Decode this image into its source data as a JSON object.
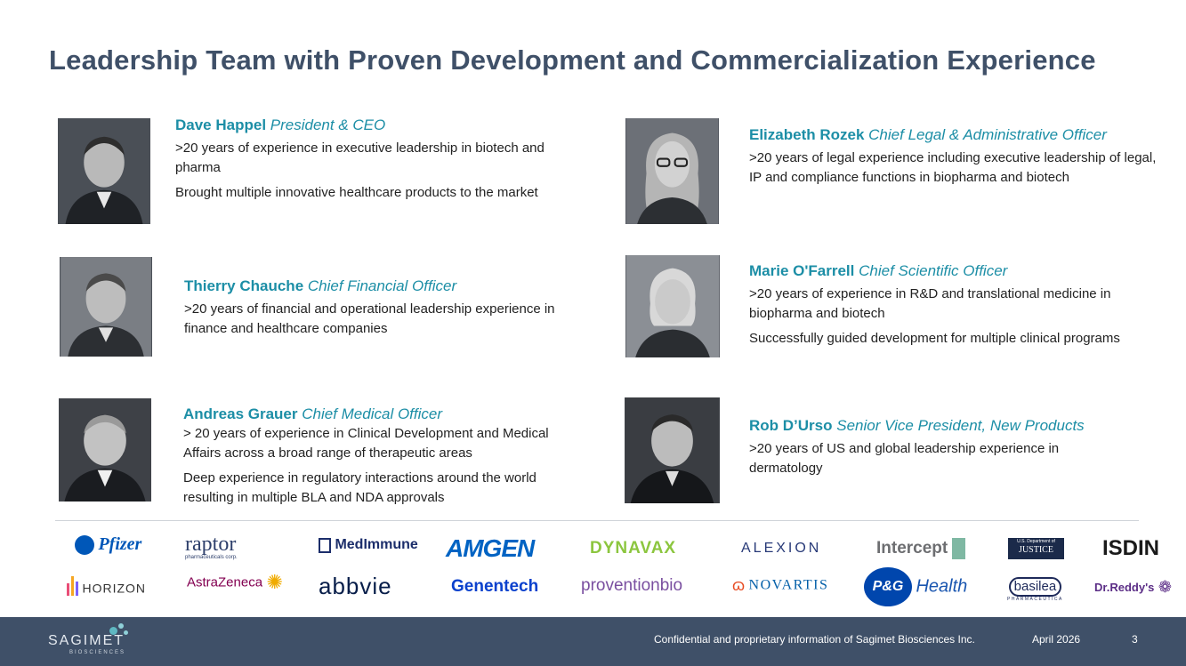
{
  "title": "Leadership Team with Proven Development and Commercialization Experience",
  "people": [
    {
      "name": "Dave Happel",
      "role": "President & CEO",
      "desc": [
        ">20 years of experience in executive leadership in biotech and pharma",
        "Brought multiple innovative healthcare products  to the market"
      ]
    },
    {
      "name": "Thierry Chauche",
      "role": "Chief Financial Officer",
      "desc": [
        ">20 years of financial and operational leadership experience in finance and healthcare companies"
      ]
    },
    {
      "name": "Andreas Grauer",
      "role": "Chief Medical Officer",
      "desc": [
        "> 20 years of experience in Clinical Development and Medical Affairs across a broad range of therapeutic areas",
        "Deep experience in regulatory interactions around the world resulting in multiple BLA and NDA approvals"
      ]
    },
    {
      "name": "Elizabeth Rozek",
      "role": "Chief Legal & Administrative Officer",
      "desc": [
        ">20 years of legal experience including executive leadership of legal, IP and compliance functions in biopharma and biotech"
      ]
    },
    {
      "name": "Marie O'Farrell",
      "role": "Chief Scientific Officer",
      "desc": [
        ">20 years of experience in R&D and translational medicine  in biopharma and biotech",
        "Successfully guided development for multiple clinical programs"
      ]
    },
    {
      "name": "Rob D’Urso",
      "role": "Senior Vice President, New Products",
      "desc": [
        ">20 years of US and global leadership experience in dermatology"
      ]
    }
  ],
  "logos": {
    "pfizer": "Pfizer",
    "raptor": "raptor",
    "raptor_sub": "pharmaceuticals corp.",
    "medimmune": "MedImmune",
    "amgen": "AMGEN",
    "dynavax": "DYNAVAX",
    "alexion": "ALEXION",
    "intercept": "Intercept",
    "doj_small": "U.S. Department of",
    "doj": "JUSTICE",
    "isdin": "ISDIN",
    "horizon": "HORIZON",
    "astrazeneca": "AstraZeneca",
    "abbvie": "abbvie",
    "genentech": "Genentech",
    "provention": "proventionbio",
    "novartis": "NOVARTIS",
    "pg": "P&G",
    "health": "Health",
    "basilea": "basilea",
    "basilea_sub": "PHARMACEUTICA",
    "drreddys": "Dr.Reddy's"
  },
  "footer": {
    "brand": "SAGIMET",
    "brand_sub": "BIOSCIENCES",
    "confidential": "Confidential and proprietary information of Sagimet Biosciences Inc.",
    "date": "April 2026",
    "page": "3"
  },
  "colors": {
    "title": "#3f5068",
    "accent": "#1c8ea6",
    "footer_bg": "#3f5068"
  }
}
